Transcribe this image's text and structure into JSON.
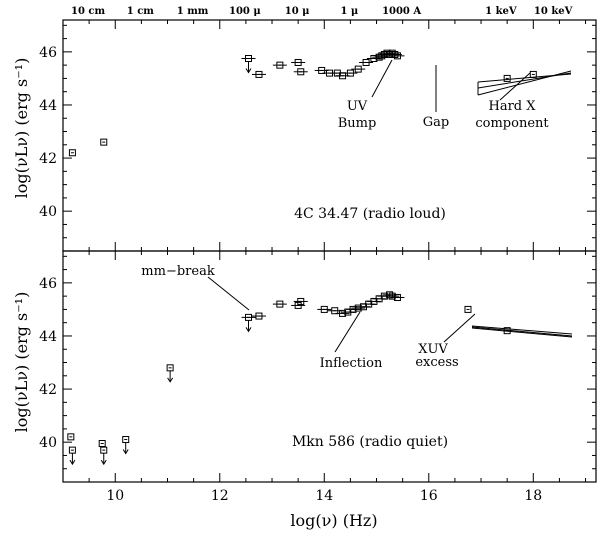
{
  "chart_data": [
    {
      "type": "scatter",
      "panel": "top",
      "title": "4C 34.47 (radio loud)",
      "xlabel": "",
      "ylabel": "log(νLν) (erg s⁻¹)",
      "xlim": [
        9,
        19.2
      ],
      "ylim": [
        38.5,
        47.2
      ],
      "yticks": [
        "40",
        "42",
        "44",
        "46"
      ],
      "top_axis_labels": [
        "10 cm",
        "1 cm",
        "1 mm",
        "100 μ",
        "10 μ",
        "1 μ",
        "1000 A",
        "1 keV",
        "10 keV"
      ],
      "series": [
        {
          "x": [
            9.18,
            9.78,
            12.55,
            12.75,
            13.15,
            13.5,
            13.55,
            13.95,
            14.1,
            14.25,
            14.35,
            14.5,
            14.65,
            14.8,
            14.95,
            15.05,
            15.1,
            15.15,
            15.2,
            15.25,
            15.3,
            15.35,
            15.4,
            17.5,
            18.0
          ],
          "y": [
            42.2,
            42.6,
            45.75,
            45.15,
            45.5,
            45.6,
            45.25,
            45.3,
            45.2,
            45.2,
            45.1,
            45.2,
            45.35,
            45.6,
            45.75,
            45.8,
            45.85,
            45.9,
            45.95,
            45.9,
            45.95,
            45.9,
            45.85,
            45.0,
            45.15
          ],
          "upper_limit_x": [
            12.55
          ]
        }
      ],
      "annotations": [
        "UV Bump",
        "Gap",
        "Hard X component"
      ]
    },
    {
      "type": "scatter",
      "panel": "bottom",
      "title": "Mkn 586 (radio quiet)",
      "xlabel": "log(ν) (Hz)",
      "ylabel": "log(νLν) (erg s⁻¹)",
      "xlim": [
        9,
        19.2
      ],
      "ylim": [
        38.5,
        47.2
      ],
      "xticks": [
        "10",
        "12",
        "14",
        "16",
        "18"
      ],
      "yticks": [
        "40",
        "42",
        "44",
        "46"
      ],
      "series": [
        {
          "x": [
            9.15,
            9.18,
            9.75,
            9.78,
            10.2,
            11.05,
            12.55,
            12.75,
            13.15,
            13.5,
            13.55,
            14.0,
            14.2,
            14.35,
            14.45,
            14.55,
            14.65,
            14.75,
            14.85,
            14.95,
            15.05,
            15.15,
            15.25,
            15.3,
            15.4,
            16.75,
            17.5
          ],
          "y": [
            40.2,
            39.7,
            39.95,
            39.7,
            40.1,
            42.8,
            44.7,
            44.75,
            45.2,
            45.15,
            45.3,
            45.0,
            44.95,
            44.85,
            44.9,
            45.0,
            45.05,
            45.1,
            45.2,
            45.3,
            45.4,
            45.5,
            45.55,
            45.5,
            45.45,
            45.0,
            44.2
          ],
          "upper_limit_x": [
            9.18,
            9.78,
            10.2,
            11.05,
            12.55
          ]
        }
      ],
      "annotations": [
        "mm−break",
        "Inflection",
        "XUV excess"
      ]
    }
  ],
  "labels": {
    "top_panel": "4C 34.47 (radio loud)",
    "bottom_panel": "Mkn 586 (radio quiet)",
    "ylabel": "log(νLν)  (erg s⁻¹)",
    "xlabel": "log(ν)  (Hz)",
    "uv_bump_1": "UV",
    "uv_bump_2": "Bump",
    "gap": "Gap",
    "hardx_1": "Hard X",
    "hardx_2": "component",
    "mmbreak": "mm−break",
    "inflection": "Inflection",
    "xuv_1": "XUV",
    "xuv_2": "excess"
  }
}
